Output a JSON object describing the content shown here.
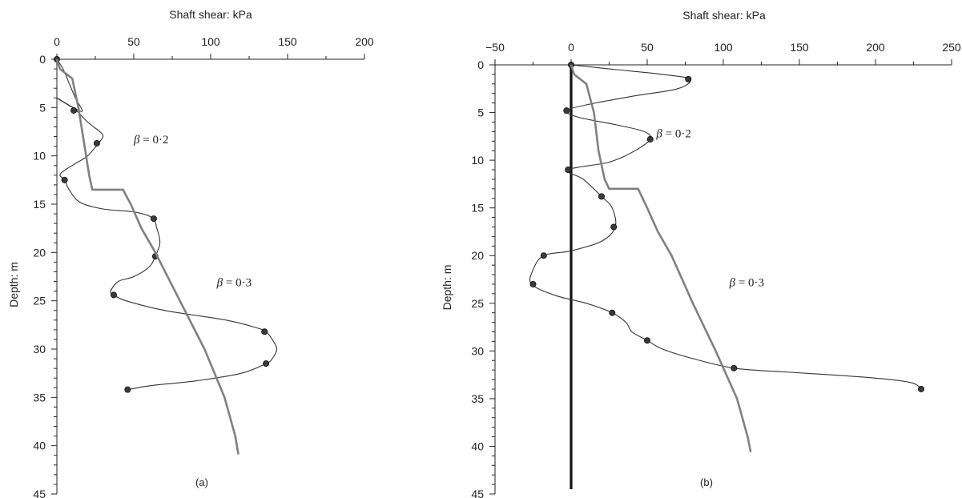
{
  "chart_data": [
    {
      "type": "line",
      "panel_label": "(a)",
      "xlabel": "Shaft shear: kPa",
      "ylabel": "Depth: m",
      "xlim": [
        0,
        200
      ],
      "ylim": [
        0,
        45
      ],
      "x_axis_position": "top",
      "y_inverted": true,
      "xticks": [
        0,
        50,
        100,
        150,
        200
      ],
      "yticks": [
        0,
        5,
        10,
        15,
        20,
        25,
        30,
        35,
        40,
        45
      ],
      "grid": false,
      "series": [
        {
          "kind": "measured",
          "color": "#333333",
          "curve": [
            [
              0,
              0
            ],
            [
              4,
              1
            ],
            [
              8,
              2.5
            ],
            [
              12,
              4
            ],
            [
              16,
              5.4
            ],
            [
              0,
              4
            ],
            [
              8,
              4.8
            ],
            [
              12,
              5.2
            ],
            [
              20,
              6.5
            ],
            [
              28,
              7.5
            ],
            [
              30,
              8
            ],
            [
              27,
              8.7
            ],
            [
              20,
              10
            ],
            [
              12,
              10.8
            ],
            [
              5,
              11.5
            ],
            [
              2,
              12
            ],
            [
              5,
              12.5
            ],
            [
              8,
              13.5
            ],
            [
              15,
              14.8
            ],
            [
              30,
              15.5
            ],
            [
              50,
              15.8
            ],
            [
              62,
              16.4
            ],
            [
              65,
              17.5
            ],
            [
              67,
              19
            ],
            [
              64,
              20.4
            ],
            [
              60,
              21.5
            ],
            [
              50,
              22.5
            ],
            [
              40,
              23
            ],
            [
              35,
              24
            ],
            [
              37,
              24.4
            ],
            [
              45,
              25
            ],
            [
              70,
              26
            ],
            [
              110,
              27
            ],
            [
              130,
              27.8
            ],
            [
              136,
              28.2
            ],
            [
              140,
              29
            ],
            [
              143,
              30
            ],
            [
              140,
              31
            ],
            [
              136,
              31.5
            ],
            [
              120,
              32.5
            ],
            [
              90,
              33.3
            ],
            [
              60,
              33.8
            ],
            [
              46,
              34.2
            ]
          ],
          "points": [
            {
              "x": 0,
              "y": 0
            },
            {
              "x": 11,
              "y": 5.3
            },
            {
              "x": 26,
              "y": 8.7
            },
            {
              "x": 5,
              "y": 12.5
            },
            {
              "x": 63,
              "y": 16.5
            },
            {
              "x": 64,
              "y": 20.4
            },
            {
              "x": 37,
              "y": 24.4
            },
            {
              "x": 135,
              "y": 28.2
            },
            {
              "x": 136,
              "y": 31.5
            },
            {
              "x": 46,
              "y": 34.2
            }
          ]
        },
        {
          "kind": "beta-profile",
          "color": "#808080",
          "curve": [
            [
              0,
              0
            ],
            [
              2,
              1
            ],
            [
              10,
              2
            ],
            [
              14,
              5
            ],
            [
              18,
              9
            ],
            [
              21,
              12
            ],
            [
              23,
              13.5
            ],
            [
              43,
              13.5
            ],
            [
              48,
              15
            ],
            [
              55,
              17.5
            ],
            [
              64,
              20
            ],
            [
              80,
              25
            ],
            [
              96,
              30
            ],
            [
              109,
              35
            ],
            [
              116,
              39
            ],
            [
              118,
              40.9
            ]
          ]
        }
      ],
      "annotations": [
        {
          "symbol": "β",
          "text": " = 0·2",
          "x": 50,
          "y": 8.7
        },
        {
          "symbol": "β",
          "text": " = 0·3",
          "x": 104,
          "y": 23.5
        }
      ]
    },
    {
      "type": "line",
      "panel_label": "(b)",
      "xlabel": "Shaft shear: kPa",
      "ylabel": "Depth: m",
      "xlim": [
        -50,
        250
      ],
      "ylim": [
        0,
        45
      ],
      "x_axis_position": "top",
      "y_inverted": true,
      "xticks": [
        -50,
        0,
        50,
        100,
        150,
        200,
        250
      ],
      "xtick_labels": [
        "−50",
        "0",
        "50",
        "100",
        "150",
        "200",
        "250"
      ],
      "yticks": [
        0,
        5,
        10,
        15,
        20,
        25,
        30,
        35,
        40,
        45
      ],
      "grid": false,
      "reference_line": {
        "x": 0,
        "ymax": 44.5,
        "color": "#111111"
      },
      "series": [
        {
          "kind": "measured",
          "color": "#333333",
          "curve": [
            [
              0,
              0
            ],
            [
              30,
              0.5
            ],
            [
              60,
              1
            ],
            [
              78,
              1.5
            ],
            [
              70,
              2.5
            ],
            [
              40,
              3.3
            ],
            [
              10,
              4.2
            ],
            [
              -3,
              4.8
            ],
            [
              5,
              5.5
            ],
            [
              30,
              6.3
            ],
            [
              48,
              7
            ],
            [
              52,
              7.8
            ],
            [
              42,
              9
            ],
            [
              25,
              10.2
            ],
            [
              -2,
              11
            ],
            [
              8,
              12
            ],
            [
              20,
              13.8
            ],
            [
              27,
              15
            ],
            [
              29,
              17
            ],
            [
              20,
              18.5
            ],
            [
              0,
              19.5
            ],
            [
              -18,
              20
            ],
            [
              -25,
              21.5
            ],
            [
              -26,
              23
            ],
            [
              -10,
              24.2
            ],
            [
              10,
              25
            ],
            [
              27,
              26
            ],
            [
              36,
              27
            ],
            [
              40,
              28
            ],
            [
              50,
              28.9
            ],
            [
              60,
              29.8
            ],
            [
              80,
              30.8
            ],
            [
              107,
              31.8
            ],
            [
              140,
              32.2
            ],
            [
              180,
              32.6
            ],
            [
              210,
              33
            ],
            [
              225,
              33.4
            ],
            [
              230,
              34
            ]
          ],
          "points": [
            {
              "x": 0,
              "y": 0
            },
            {
              "x": 77,
              "y": 1.5
            },
            {
              "x": -3,
              "y": 4.8
            },
            {
              "x": 52,
              "y": 7.8
            },
            {
              "x": -2,
              "y": 11
            },
            {
              "x": 20,
              "y": 13.8
            },
            {
              "x": 28,
              "y": 17
            },
            {
              "x": -18,
              "y": 20
            },
            {
              "x": -25,
              "y": 23
            },
            {
              "x": 27,
              "y": 26
            },
            {
              "x": 50,
              "y": 28.9
            },
            {
              "x": 107,
              "y": 31.8
            },
            {
              "x": 230,
              "y": 34
            }
          ]
        },
        {
          "kind": "beta-profile",
          "color": "#808080",
          "curve": [
            [
              0,
              0
            ],
            [
              2,
              1
            ],
            [
              10,
              2
            ],
            [
              15,
              5
            ],
            [
              18,
              9
            ],
            [
              22,
              12
            ],
            [
              25,
              13
            ],
            [
              44,
              13
            ],
            [
              50,
              15
            ],
            [
              57,
              17.5
            ],
            [
              66,
              20
            ],
            [
              80,
              25
            ],
            [
              95,
              30
            ],
            [
              109,
              35
            ],
            [
              116,
              39
            ],
            [
              118,
              40.6
            ]
          ]
        }
      ],
      "annotations": [
        {
          "symbol": "β",
          "text": " = 0·2",
          "x": 56,
          "y": 7.6
        },
        {
          "symbol": "β",
          "text": " = 0·3",
          "x": 104,
          "y": 23.2
        }
      ]
    }
  ]
}
